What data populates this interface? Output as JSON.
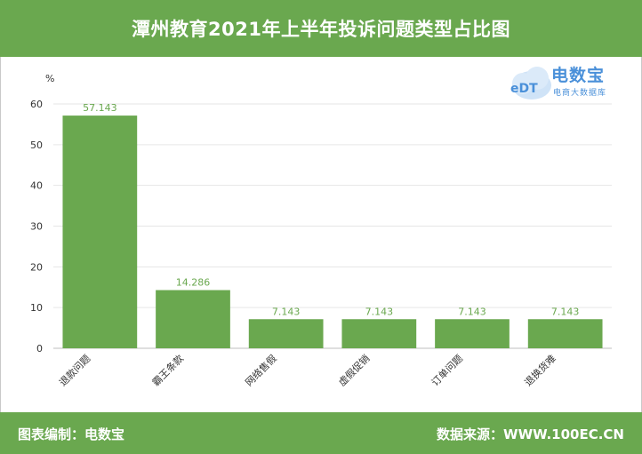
{
  "header": {
    "title": "潭州教育2021年上半年投诉问题类型占比图"
  },
  "logo": {
    "name": "电数宝",
    "subtitle": "电商大数据库",
    "badge": "eDT"
  },
  "footer": {
    "left": "图表编制：电数宝",
    "right": "数据来源：WWW.100EC.CN"
  },
  "colors": {
    "bar": "#6aa84f",
    "header": "#6aa84f",
    "footer": "#6aa84f",
    "logo": "#4a90d9"
  },
  "chart_data": {
    "type": "bar",
    "title": "潭州教育2021年上半年投诉问题类型占比图",
    "ylabel": "%",
    "xlabel": "",
    "ylim": [
      0,
      60
    ],
    "yticks": [
      0,
      10,
      20,
      30,
      40,
      50,
      60
    ],
    "grid": true,
    "categories": [
      "退款问题",
      "霸王条款",
      "网络售假",
      "虚假促销",
      "订单问题",
      "退换货难"
    ],
    "values": [
      57.143,
      14.286,
      7.143,
      7.143,
      7.143,
      7.143
    ],
    "value_labels": [
      "57.143",
      "14.286",
      "7.143",
      "7.143",
      "7.143",
      "7.143"
    ]
  }
}
